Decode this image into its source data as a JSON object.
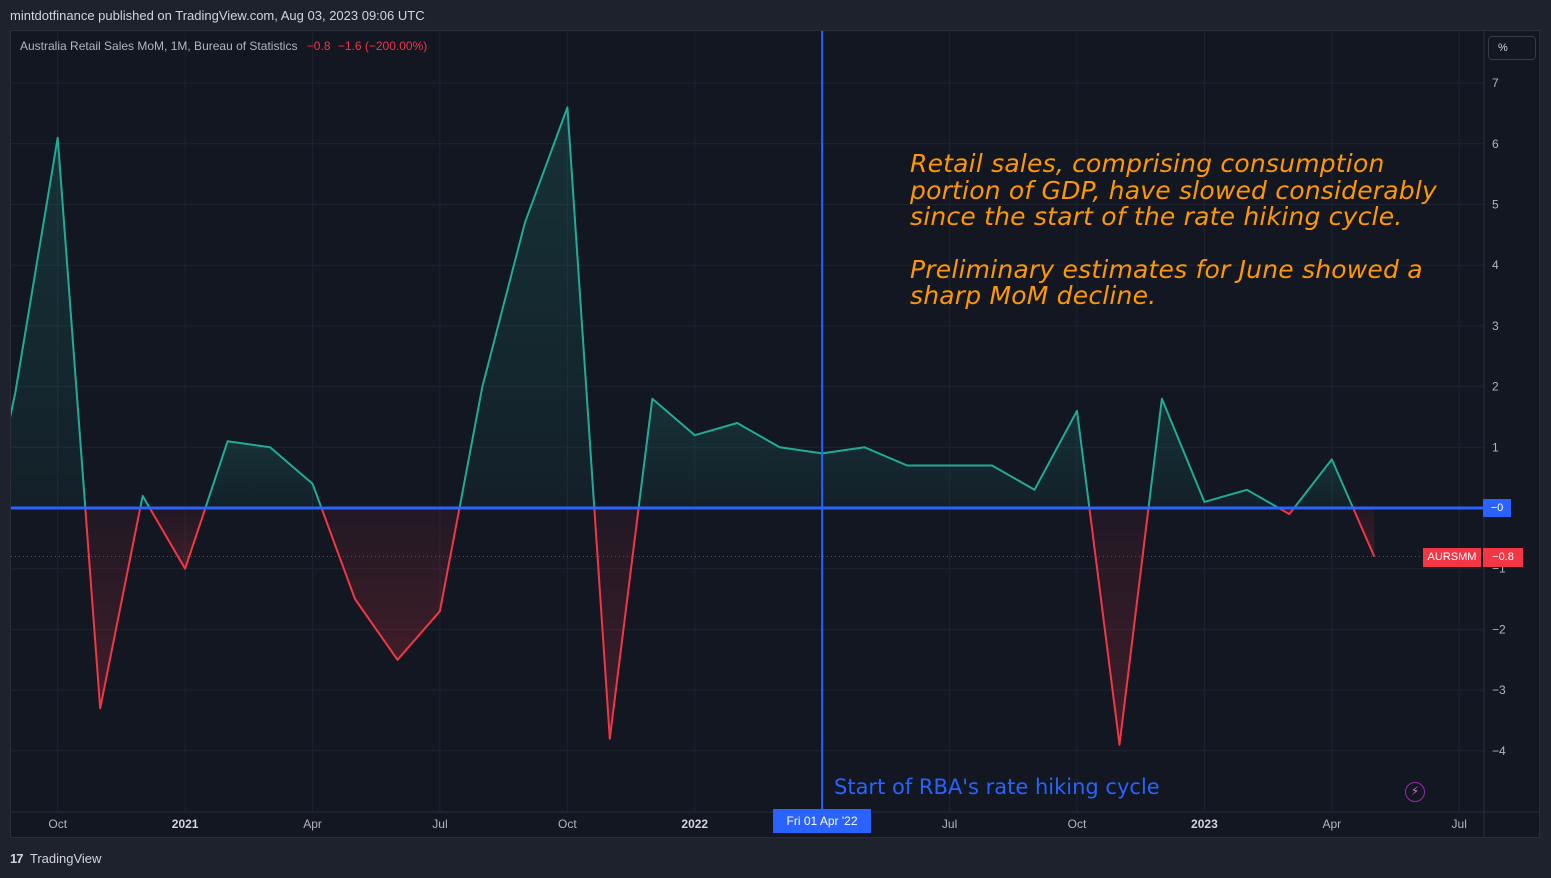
{
  "header": {
    "publisher_line": "mintdotfinance published on TradingView.com, Aug 03, 2023 09:06 UTC"
  },
  "legend": {
    "series_title": "Australia Retail Sales MoM, 1M, Bureau of Statistics",
    "last_value": "−0.8",
    "change": "−1.6 (−200.00%)"
  },
  "scale": {
    "unit_label": "%"
  },
  "annotation": {
    "line1": "Retail sales, comprising consumption portion of GDP, have slowed considerably since the start of the rate hiking cycle.",
    "line2": "Preliminary estimates for June showed a sharp MoM decline."
  },
  "marker": {
    "label": "Start of RBA's rate hiking cycle",
    "date_label": "Fri 01 Apr '22",
    "date": "2022-04"
  },
  "price_tags": {
    "zero_label": "−0",
    "symbol": "AURSMM",
    "last_label": "−0.8"
  },
  "footer": {
    "brand_text": "TradingView"
  },
  "colors": {
    "positive": "#22ab94",
    "negative": "#f23645",
    "marker": "#2962ff",
    "annotation": "#ff9800",
    "background": "#131722"
  },
  "chart_data": {
    "type": "line",
    "series": [
      {
        "x": [
          "2020-08",
          "2020-09",
          "2020-10",
          "2020-11",
          "2020-12",
          "2021-01",
          "2021-02",
          "2021-03",
          "2021-04",
          "2021-05",
          "2021-06",
          "2021-07",
          "2021-08",
          "2021-09",
          "2021-10",
          "2021-11",
          "2021-12",
          "2022-01",
          "2022-02",
          "2022-03",
          "2022-04",
          "2022-05",
          "2022-06",
          "2022-07",
          "2022-08",
          "2022-09",
          "2022-10",
          "2022-11",
          "2022-12",
          "2023-01",
          "2023-02",
          "2023-03",
          "2023-04",
          "2023-05",
          "2023-06"
        ],
        "values": [
          -1.4,
          1.9,
          6.1,
          -3.3,
          0.2,
          -1.0,
          1.1,
          1.0,
          0.4,
          -1.5,
          -2.5,
          -1.7,
          2.0,
          4.7,
          6.6,
          -3.8,
          1.8,
          1.2,
          1.4,
          1.0,
          0.9,
          1.0,
          0.7,
          0.7,
          0.7,
          0.3,
          1.6,
          -3.9,
          1.8,
          0.1,
          0.3,
          -0.1,
          0.8,
          -0.8,
          null
        ]
      }
    ],
    "x_ticks": [
      {
        "date": "2020-10",
        "label": "Oct",
        "bold": false
      },
      {
        "date": "2021-01",
        "label": "2021",
        "bold": true
      },
      {
        "date": "2021-04",
        "label": "Apr",
        "bold": false
      },
      {
        "date": "2021-07",
        "label": "Jul",
        "bold": false
      },
      {
        "date": "2021-10",
        "label": "Oct",
        "bold": false
      },
      {
        "date": "2022-01",
        "label": "2022",
        "bold": true
      },
      {
        "date": "2022-07",
        "label": "Jul",
        "bold": false
      },
      {
        "date": "2022-10",
        "label": "Oct",
        "bold": false
      },
      {
        "date": "2023-01",
        "label": "2023",
        "bold": true
      },
      {
        "date": "2023-04",
        "label": "Apr",
        "bold": false
      },
      {
        "date": "2023-07",
        "label": "Jul",
        "bold": false
      }
    ],
    "y_ticks": [
      {
        "value": 7,
        "label": "7"
      },
      {
        "value": 6,
        "label": "6"
      },
      {
        "value": 5,
        "label": "5"
      },
      {
        "value": 4,
        "label": "4"
      },
      {
        "value": 3,
        "label": "3"
      },
      {
        "value": 2,
        "label": "2"
      },
      {
        "value": 1,
        "label": "1"
      },
      {
        "value": -1,
        "label": "−1"
      },
      {
        "value": -2,
        "label": "−2"
      },
      {
        "value": -3,
        "label": "−3"
      },
      {
        "value": -4,
        "label": "−4"
      }
    ],
    "ylim": [
      -4.5,
      7.5
    ],
    "baseline": 0,
    "grid": true
  }
}
